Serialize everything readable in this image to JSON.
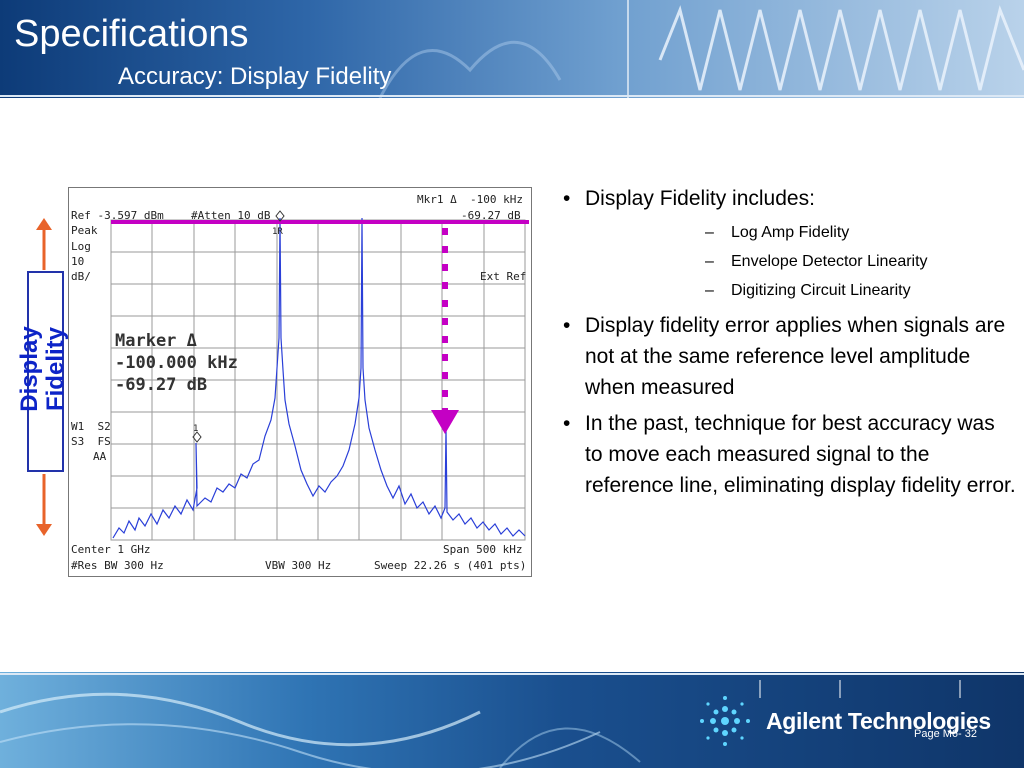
{
  "header": {
    "title": "Specifications",
    "subtitle": "Accuracy: Display Fidelity"
  },
  "side_label": {
    "line1": "Display",
    "line2": "Fidelity",
    "arrow_color": "#e8632a",
    "text_color": "#0d24c8"
  },
  "analyzer": {
    "ref": "Ref -3.597 dBm",
    "atten": "#Atten 10 dB",
    "mkr_line1": "Mkr1 Δ  -100 kHz",
    "mkr_line2": "-69.27 dB",
    "peak": "Peak",
    "log": "Log",
    "scale_num": "10",
    "scale_unit": "dB/",
    "ext_ref": "Ext Ref",
    "marker_title": "Marker Δ",
    "marker_freq": "-100.000 kHz",
    "marker_amp": "-69.27 dB",
    "w1s2": "W1  S2",
    "s3fs": "S3  FS",
    "aa": "AA",
    "marker_1r": "1R",
    "marker_1": "1",
    "center": "Center 1 GHz",
    "span": "Span 500 kHz",
    "res_bw": "#Res BW 300 Hz",
    "vbw": "VBW 300 Hz",
    "sweep": "Sweep 22.26 s (401 pts)",
    "ref_line_color": "#c400c4",
    "trace_color": "#2a3fd8"
  },
  "bullets": [
    {
      "text": "Display Fidelity includes:",
      "subs": [
        "Log Amp Fidelity",
        "Envelope Detector Linearity",
        "Digitizing Circuit Linearity"
      ]
    },
    {
      "text": "Display fidelity error applies when signals are not at the same reference level amplitude when measured",
      "subs": []
    },
    {
      "text": "In the past, technique for best accuracy was to move each measured signal to the reference line, eliminating display fidelity error.",
      "subs": []
    }
  ],
  "footer": {
    "logo": "Agilent Technologies",
    "page": "Page M6- 32"
  }
}
